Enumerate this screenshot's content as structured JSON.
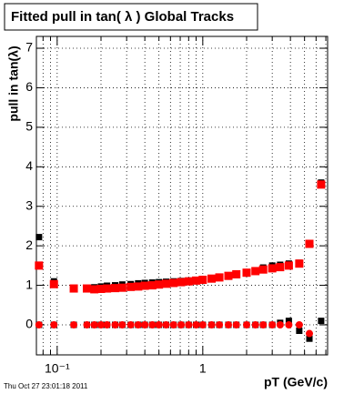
{
  "chart_data": {
    "type": "scatter",
    "title": "Fitted pull in tan( λ )  Global Tracks",
    "x_label": "pT (GeV/c)",
    "y_label": "pull in tan(λ)",
    "footer": "Thu Oct 27 23:01:18 2011",
    "log_x": true,
    "grid": true,
    "xlim": [
      0.072,
      7.2
    ],
    "ylim": [
      -0.76,
      7.3
    ],
    "xticks": [
      {
        "value": 0.1,
        "label": "10⁻¹"
      },
      1
    ],
    "xminorticks": [
      0.08,
      0.09,
      0.2,
      0.3,
      0.4,
      0.5,
      0.6,
      0.7,
      0.8,
      0.9,
      2,
      3,
      4,
      5,
      6,
      7
    ],
    "yticks": [
      0,
      1,
      2,
      3,
      4,
      5,
      6,
      7
    ],
    "x": [
      0.075,
      0.095,
      0.13,
      0.16,
      0.18,
      0.2,
      0.22,
      0.25,
      0.28,
      0.32,
      0.36,
      0.4,
      0.45,
      0.5,
      0.56,
      0.63,
      0.71,
      0.8,
      0.9,
      1.0,
      1.15,
      1.3,
      1.5,
      1.7,
      2.0,
      2.3,
      2.6,
      3.0,
      3.4,
      3.9,
      4.6,
      5.4,
      6.5
    ],
    "series": [
      {
        "color": "#000000",
        "marker_size": 7,
        "values": [
          2.22,
          1.1,
          0.93,
          0.93,
          0.95,
          0.97,
          0.99,
          1.0,
          1.02,
          1.03,
          1.05,
          1.06,
          1.07,
          1.08,
          1.09,
          1.1,
          1.11,
          1.12,
          1.13,
          1.14,
          1.16,
          1.19,
          1.22,
          1.26,
          1.3,
          1.38,
          1.45,
          1.5,
          1.52,
          1.55,
          1.57,
          2.05,
          3.6
        ]
      },
      {
        "color": "#000000",
        "marker_size": 7,
        "values": [
          0,
          0,
          0,
          0,
          0,
          0,
          0,
          0,
          0,
          0,
          0,
          0,
          0,
          0,
          0,
          0,
          0,
          0,
          0,
          0,
          0,
          0,
          0,
          0,
          0,
          0,
          0,
          0,
          0.05,
          0.1,
          -0.15,
          -0.35,
          0.1
        ]
      },
      {
        "color": "#ff0000",
        "marker_size": 9,
        "values": [
          1.5,
          1.03,
          0.92,
          0.92,
          0.9,
          0.91,
          0.92,
          0.93,
          0.94,
          0.96,
          0.97,
          0.99,
          1.0,
          1.02,
          1.04,
          1.06,
          1.08,
          1.1,
          1.12,
          1.14,
          1.17,
          1.2,
          1.24,
          1.28,
          1.32,
          1.36,
          1.4,
          1.43,
          1.46,
          1.5,
          1.55,
          2.05,
          3.55
        ]
      },
      {
        "color": "#ff0000",
        "marker_size": 8,
        "marker": "circle",
        "values": [
          0,
          0,
          0,
          0,
          0,
          0,
          0,
          0,
          0,
          0,
          0,
          0,
          0,
          0,
          0,
          0,
          0,
          0,
          0,
          0,
          0,
          0,
          0,
          0,
          0,
          0,
          0,
          0,
          0,
          0,
          0,
          -0.22,
          null
        ]
      }
    ]
  }
}
